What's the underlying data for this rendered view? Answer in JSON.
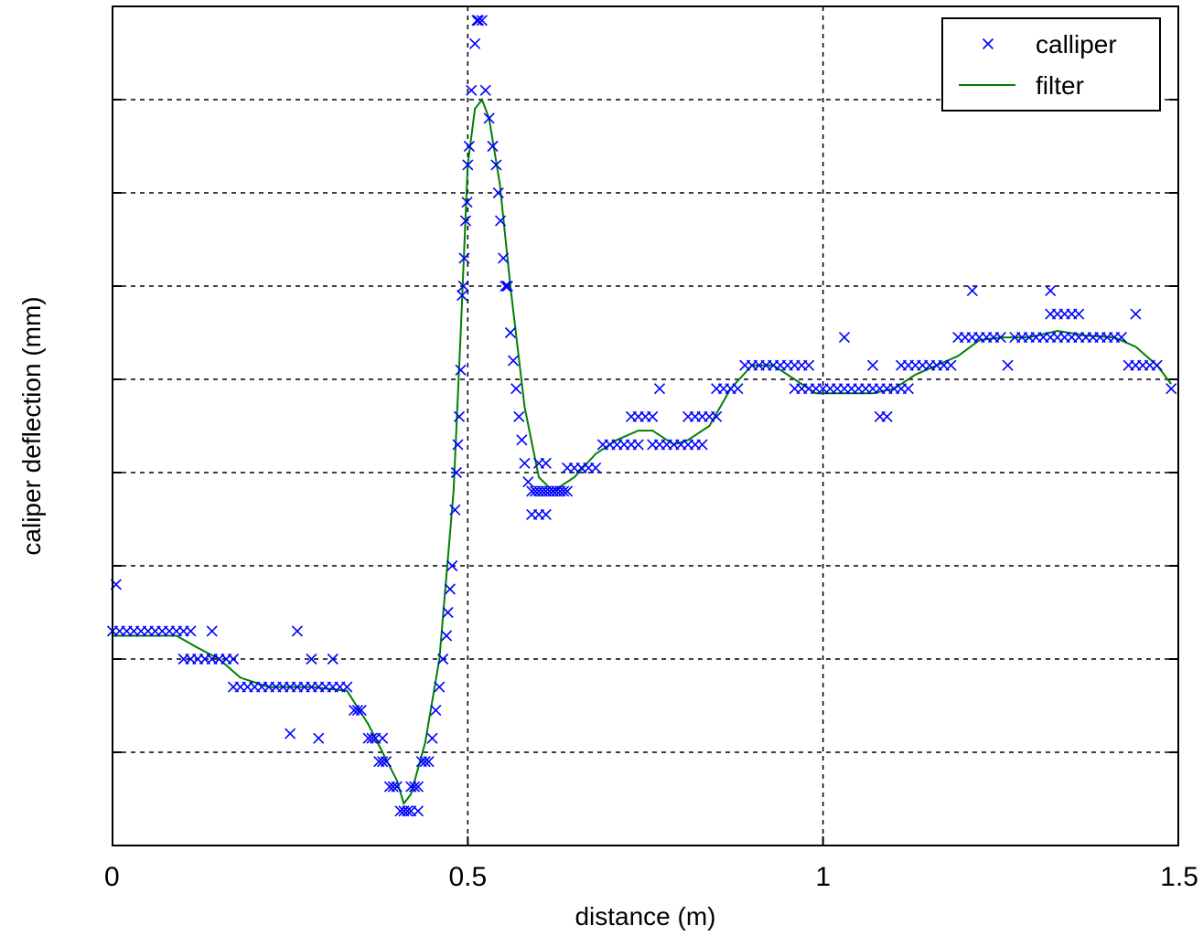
{
  "chart_data": {
    "type": "scatter",
    "xlabel": "distance (m)",
    "ylabel": "caliper deflection (mm)",
    "xlim": [
      0,
      1.5
    ],
    "ylim": [
      0,
      9
    ],
    "xticks": [
      0,
      0.5,
      1,
      1.5
    ],
    "xtick_labels": [
      "0",
      "0.5",
      "1",
      "1.5"
    ],
    "yticks": [
      1,
      2,
      3,
      4,
      5,
      6,
      7,
      8
    ],
    "grid": true,
    "legend": {
      "position": "top-right"
    },
    "series": [
      {
        "name": "calliper",
        "marker": "x",
        "color": "#0000ff",
        "points": [
          [
            0.0,
            2.3
          ],
          [
            0.01,
            2.3
          ],
          [
            0.02,
            2.3
          ],
          [
            0.03,
            2.3
          ],
          [
            0.04,
            2.3
          ],
          [
            0.05,
            2.3
          ],
          [
            0.06,
            2.3
          ],
          [
            0.07,
            2.3
          ],
          [
            0.08,
            2.3
          ],
          [
            0.09,
            2.3
          ],
          [
            0.1,
            2.3
          ],
          [
            0.11,
            2.3
          ],
          [
            0.005,
            2.8
          ],
          [
            0.14,
            2.3
          ],
          [
            0.26,
            2.3
          ],
          [
            0.28,
            2.0
          ],
          [
            0.31,
            2.0
          ],
          [
            0.25,
            1.2
          ],
          [
            0.29,
            1.15
          ],
          [
            0.1,
            2.0
          ],
          [
            0.11,
            2.0
          ],
          [
            0.12,
            2.0
          ],
          [
            0.13,
            2.0
          ],
          [
            0.14,
            2.0
          ],
          [
            0.15,
            2.0
          ],
          [
            0.16,
            2.0
          ],
          [
            0.17,
            2.0
          ],
          [
            0.17,
            1.7
          ],
          [
            0.18,
            1.7
          ],
          [
            0.19,
            1.7
          ],
          [
            0.2,
            1.7
          ],
          [
            0.21,
            1.7
          ],
          [
            0.22,
            1.7
          ],
          [
            0.23,
            1.7
          ],
          [
            0.24,
            1.7
          ],
          [
            0.25,
            1.7
          ],
          [
            0.26,
            1.7
          ],
          [
            0.27,
            1.7
          ],
          [
            0.28,
            1.7
          ],
          [
            0.29,
            1.7
          ],
          [
            0.3,
            1.7
          ],
          [
            0.31,
            1.7
          ],
          [
            0.32,
            1.7
          ],
          [
            0.33,
            1.7
          ],
          [
            0.34,
            1.45
          ],
          [
            0.345,
            1.45
          ],
          [
            0.35,
            1.45
          ],
          [
            0.36,
            1.15
          ],
          [
            0.365,
            1.15
          ],
          [
            0.37,
            1.15
          ],
          [
            0.375,
            0.9
          ],
          [
            0.38,
            0.9
          ],
          [
            0.385,
            0.9
          ],
          [
            0.38,
            1.15
          ],
          [
            0.39,
            0.63
          ],
          [
            0.395,
            0.63
          ],
          [
            0.4,
            0.63
          ],
          [
            0.41,
            0.37
          ],
          [
            0.405,
            0.37
          ],
          [
            0.415,
            0.37
          ],
          [
            0.42,
            0.37
          ],
          [
            0.43,
            0.37
          ],
          [
            0.42,
            0.63
          ],
          [
            0.425,
            0.63
          ],
          [
            0.43,
            0.63
          ],
          [
            0.435,
            0.9
          ],
          [
            0.44,
            0.9
          ],
          [
            0.445,
            0.9
          ],
          [
            0.45,
            1.15
          ],
          [
            0.455,
            1.45
          ],
          [
            0.46,
            1.7
          ],
          [
            0.465,
            2.0
          ],
          [
            0.47,
            2.25
          ],
          [
            0.472,
            2.5
          ],
          [
            0.475,
            2.75
          ],
          [
            0.478,
            3.0
          ],
          [
            0.482,
            3.6
          ],
          [
            0.484,
            4.0
          ],
          [
            0.486,
            4.3
          ],
          [
            0.488,
            4.6
          ],
          [
            0.49,
            5.1
          ],
          [
            0.492,
            5.9
          ],
          [
            0.494,
            6.0
          ],
          [
            0.495,
            6.3
          ],
          [
            0.497,
            6.7
          ],
          [
            0.499,
            6.9
          ],
          [
            0.5,
            7.3
          ],
          [
            0.502,
            7.5
          ],
          [
            0.505,
            8.1
          ],
          [
            0.51,
            8.6
          ],
          [
            0.513,
            8.85
          ],
          [
            0.515,
            8.85
          ],
          [
            0.52,
            8.85
          ],
          [
            0.525,
            8.1
          ],
          [
            0.53,
            7.8
          ],
          [
            0.535,
            7.5
          ],
          [
            0.54,
            7.3
          ],
          [
            0.543,
            7.0
          ],
          [
            0.546,
            6.7
          ],
          [
            0.55,
            6.3
          ],
          [
            0.553,
            6.0
          ],
          [
            0.556,
            6.0
          ],
          [
            0.56,
            5.5
          ],
          [
            0.564,
            5.2
          ],
          [
            0.568,
            4.9
          ],
          [
            0.572,
            4.6
          ],
          [
            0.576,
            4.35
          ],
          [
            0.58,
            4.1
          ],
          [
            0.585,
            3.9
          ],
          [
            0.59,
            3.8
          ],
          [
            0.595,
            3.8
          ],
          [
            0.6,
            3.8
          ],
          [
            0.605,
            3.8
          ],
          [
            0.61,
            3.8
          ],
          [
            0.615,
            3.8
          ],
          [
            0.62,
            3.8
          ],
          [
            0.625,
            3.8
          ],
          [
            0.63,
            3.8
          ],
          [
            0.635,
            3.8
          ],
          [
            0.64,
            3.8
          ],
          [
            0.59,
            3.55
          ],
          [
            0.6,
            3.55
          ],
          [
            0.61,
            3.55
          ],
          [
            0.6,
            4.1
          ],
          [
            0.61,
            4.1
          ],
          [
            0.64,
            4.05
          ],
          [
            0.65,
            4.05
          ],
          [
            0.66,
            4.05
          ],
          [
            0.67,
            4.05
          ],
          [
            0.68,
            4.05
          ],
          [
            0.69,
            4.3
          ],
          [
            0.7,
            4.3
          ],
          [
            0.71,
            4.3
          ],
          [
            0.72,
            4.3
          ],
          [
            0.73,
            4.3
          ],
          [
            0.74,
            4.3
          ],
          [
            0.73,
            4.6
          ],
          [
            0.74,
            4.6
          ],
          [
            0.75,
            4.6
          ],
          [
            0.76,
            4.6
          ],
          [
            0.77,
            4.9
          ],
          [
            0.76,
            4.3
          ],
          [
            0.77,
            4.3
          ],
          [
            0.78,
            4.3
          ],
          [
            0.79,
            4.3
          ],
          [
            0.8,
            4.3
          ],
          [
            0.81,
            4.3
          ],
          [
            0.82,
            4.3
          ],
          [
            0.83,
            4.3
          ],
          [
            0.81,
            4.6
          ],
          [
            0.82,
            4.6
          ],
          [
            0.83,
            4.6
          ],
          [
            0.84,
            4.6
          ],
          [
            0.85,
            4.6
          ],
          [
            0.85,
            4.9
          ],
          [
            0.86,
            4.9
          ],
          [
            0.87,
            4.9
          ],
          [
            0.88,
            4.9
          ],
          [
            0.89,
            5.15
          ],
          [
            0.9,
            5.15
          ],
          [
            0.91,
            5.15
          ],
          [
            0.92,
            5.15
          ],
          [
            0.93,
            5.15
          ],
          [
            0.94,
            5.15
          ],
          [
            0.95,
            5.15
          ],
          [
            0.96,
            5.15
          ],
          [
            0.97,
            5.15
          ],
          [
            0.98,
            5.15
          ],
          [
            0.96,
            4.9
          ],
          [
            0.97,
            4.9
          ],
          [
            0.98,
            4.9
          ],
          [
            0.99,
            4.9
          ],
          [
            1.0,
            4.9
          ],
          [
            1.01,
            4.9
          ],
          [
            1.02,
            4.9
          ],
          [
            1.03,
            4.9
          ],
          [
            1.04,
            4.9
          ],
          [
            1.05,
            4.9
          ],
          [
            1.06,
            4.9
          ],
          [
            1.07,
            4.9
          ],
          [
            1.08,
            4.9
          ],
          [
            1.09,
            4.9
          ],
          [
            1.1,
            4.9
          ],
          [
            1.11,
            4.9
          ],
          [
            1.12,
            4.9
          ],
          [
            1.03,
            5.45
          ],
          [
            1.07,
            5.15
          ],
          [
            1.08,
            4.6
          ],
          [
            1.09,
            4.6
          ],
          [
            1.11,
            5.15
          ],
          [
            1.12,
            5.15
          ],
          [
            1.13,
            5.15
          ],
          [
            1.14,
            5.15
          ],
          [
            1.15,
            5.15
          ],
          [
            1.16,
            5.15
          ],
          [
            1.17,
            5.15
          ],
          [
            1.18,
            5.15
          ],
          [
            1.19,
            5.45
          ],
          [
            1.2,
            5.45
          ],
          [
            1.21,
            5.45
          ],
          [
            1.22,
            5.45
          ],
          [
            1.23,
            5.45
          ],
          [
            1.24,
            5.45
          ],
          [
            1.25,
            5.45
          ],
          [
            1.21,
            5.95
          ],
          [
            1.26,
            5.15
          ],
          [
            1.27,
            5.45
          ],
          [
            1.28,
            5.45
          ],
          [
            1.29,
            5.45
          ],
          [
            1.3,
            5.45
          ],
          [
            1.31,
            5.45
          ],
          [
            1.32,
            5.45
          ],
          [
            1.33,
            5.45
          ],
          [
            1.34,
            5.45
          ],
          [
            1.35,
            5.45
          ],
          [
            1.36,
            5.45
          ],
          [
            1.37,
            5.45
          ],
          [
            1.38,
            5.45
          ],
          [
            1.39,
            5.45
          ],
          [
            1.4,
            5.45
          ],
          [
            1.41,
            5.45
          ],
          [
            1.42,
            5.45
          ],
          [
            1.32,
            5.7
          ],
          [
            1.33,
            5.7
          ],
          [
            1.34,
            5.7
          ],
          [
            1.35,
            5.7
          ],
          [
            1.36,
            5.7
          ],
          [
            1.32,
            5.95
          ],
          [
            1.43,
            5.15
          ],
          [
            1.44,
            5.15
          ],
          [
            1.45,
            5.15
          ],
          [
            1.46,
            5.15
          ],
          [
            1.47,
            5.15
          ],
          [
            1.44,
            5.7
          ],
          [
            1.49,
            4.9
          ]
        ]
      },
      {
        "name": "filter",
        "marker": "line",
        "color": "#008000",
        "points": [
          [
            0.0,
            2.25
          ],
          [
            0.05,
            2.25
          ],
          [
            0.09,
            2.25
          ],
          [
            0.12,
            2.12
          ],
          [
            0.15,
            2.0
          ],
          [
            0.18,
            1.8
          ],
          [
            0.22,
            1.7
          ],
          [
            0.28,
            1.7
          ],
          [
            0.33,
            1.66
          ],
          [
            0.36,
            1.3
          ],
          [
            0.38,
            1.0
          ],
          [
            0.4,
            0.7
          ],
          [
            0.41,
            0.45
          ],
          [
            0.42,
            0.55
          ],
          [
            0.44,
            1.1
          ],
          [
            0.46,
            2.0
          ],
          [
            0.48,
            3.8
          ],
          [
            0.49,
            5.5
          ],
          [
            0.5,
            7.3
          ],
          [
            0.51,
            7.9
          ],
          [
            0.52,
            8.0
          ],
          [
            0.53,
            7.8
          ],
          [
            0.545,
            7.1
          ],
          [
            0.56,
            6.0
          ],
          [
            0.58,
            4.7
          ],
          [
            0.6,
            3.95
          ],
          [
            0.62,
            3.8
          ],
          [
            0.65,
            3.95
          ],
          [
            0.68,
            4.2
          ],
          [
            0.71,
            4.35
          ],
          [
            0.74,
            4.45
          ],
          [
            0.76,
            4.45
          ],
          [
            0.79,
            4.3
          ],
          [
            0.81,
            4.35
          ],
          [
            0.84,
            4.5
          ],
          [
            0.87,
            4.9
          ],
          [
            0.9,
            5.15
          ],
          [
            0.93,
            5.15
          ],
          [
            0.96,
            5.0
          ],
          [
            0.99,
            4.85
          ],
          [
            1.03,
            4.85
          ],
          [
            1.07,
            4.85
          ],
          [
            1.1,
            4.9
          ],
          [
            1.13,
            5.05
          ],
          [
            1.16,
            5.15
          ],
          [
            1.19,
            5.25
          ],
          [
            1.22,
            5.42
          ],
          [
            1.25,
            5.45
          ],
          [
            1.29,
            5.45
          ],
          [
            1.33,
            5.52
          ],
          [
            1.37,
            5.47
          ],
          [
            1.41,
            5.45
          ],
          [
            1.44,
            5.35
          ],
          [
            1.47,
            5.15
          ],
          [
            1.49,
            4.95
          ]
        ]
      }
    ]
  }
}
